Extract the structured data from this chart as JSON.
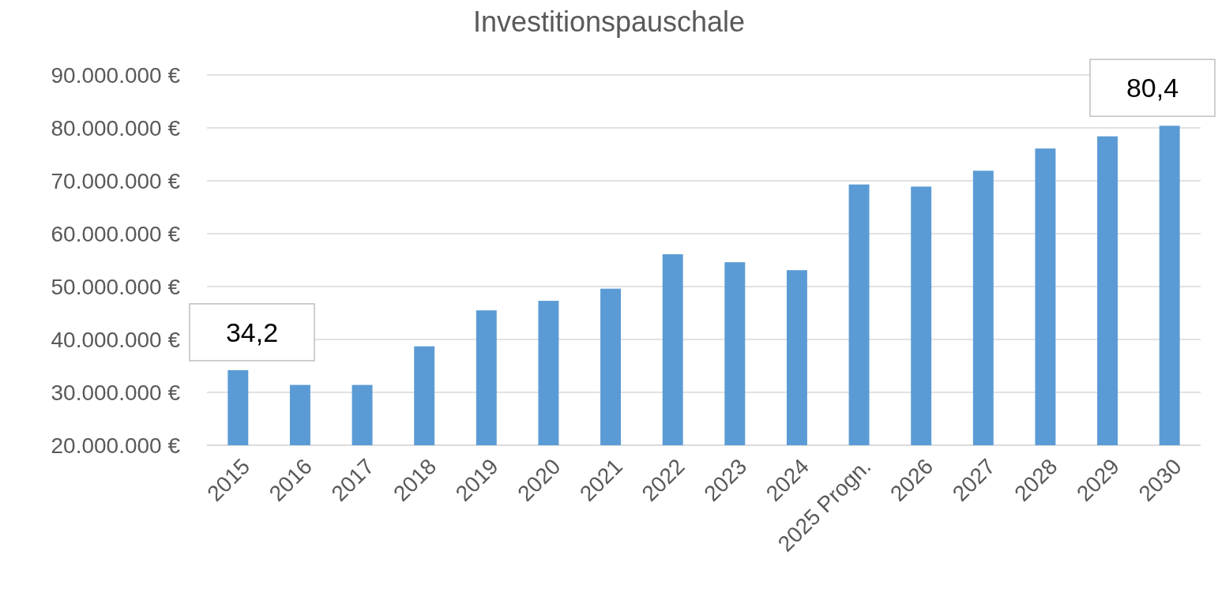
{
  "chart_data": {
    "type": "bar",
    "title": "Investitionspauschale",
    "categories": [
      "2015",
      "2016",
      "2017",
      "2018",
      "2019",
      "2020",
      "2021",
      "2022",
      "2023",
      "2024",
      "2025 Progn.",
      "2026",
      "2027",
      "2028",
      "2029",
      "2030"
    ],
    "values": [
      34200000,
      31400000,
      31400000,
      38700000,
      45500000,
      47300000,
      49600000,
      56100000,
      54600000,
      53100000,
      69300000,
      68900000,
      71900000,
      76100000,
      78400000,
      80400000
    ],
    "color": "#5b9bd5",
    "ylim": [
      20000000,
      90000000
    ],
    "yticks": [
      {
        "value": 20000000,
        "label": "20.000.000 €"
      },
      {
        "value": 30000000,
        "label": "30.000.000 €"
      },
      {
        "value": 40000000,
        "label": "40.000.000 €"
      },
      {
        "value": 50000000,
        "label": "50.000.000 €"
      },
      {
        "value": 60000000,
        "label": "60.000.000 €"
      },
      {
        "value": 70000000,
        "label": "70.000.000 €"
      },
      {
        "value": 80000000,
        "label": "80.000.000 €"
      },
      {
        "value": 90000000,
        "label": "90.000.000 €"
      }
    ],
    "grid": "y",
    "annotations": [
      {
        "text": "34,2",
        "x": "2015",
        "y": 34200000
      },
      {
        "text": "80,4",
        "x": "2030",
        "y": 80400000
      }
    ]
  }
}
